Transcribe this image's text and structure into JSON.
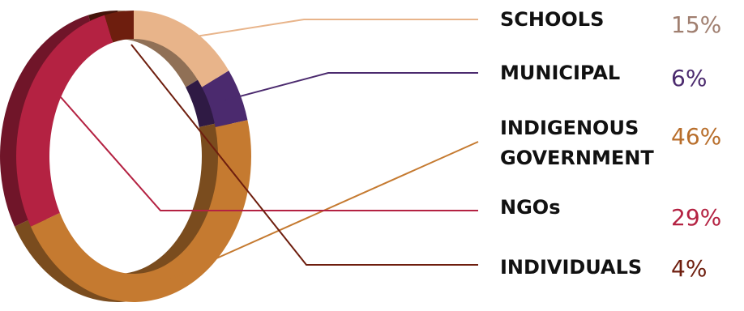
{
  "chart_data": {
    "type": "pie",
    "style": "3d-ring",
    "legend_placement": "right",
    "slices": [
      {
        "label": "SCHOOLS",
        "value": 15,
        "display": "15%",
        "color": "#E8B48A",
        "value_color": "#A07F70"
      },
      {
        "label": "MUNICIPAL",
        "value": 6,
        "display": "6%",
        "color": "#4B2A6E",
        "value_color": "#4B2A6E"
      },
      {
        "label": "INDIGENOUS GOVERNMENT",
        "label_lines": [
          "INDIGENOUS",
          "GOVERNMENT"
        ],
        "value": 46,
        "display": "46%",
        "color": "#C57A30",
        "value_color": "#B86E2B"
      },
      {
        "label": "NGOs",
        "value": 29,
        "display": "29%",
        "color": "#B42242",
        "value_color": "#B42242"
      },
      {
        "label": "INDIVIDUALS",
        "value": 4,
        "display": "4%",
        "color": "#6E1E0E",
        "value_color": "#6E1E0E"
      }
    ]
  }
}
